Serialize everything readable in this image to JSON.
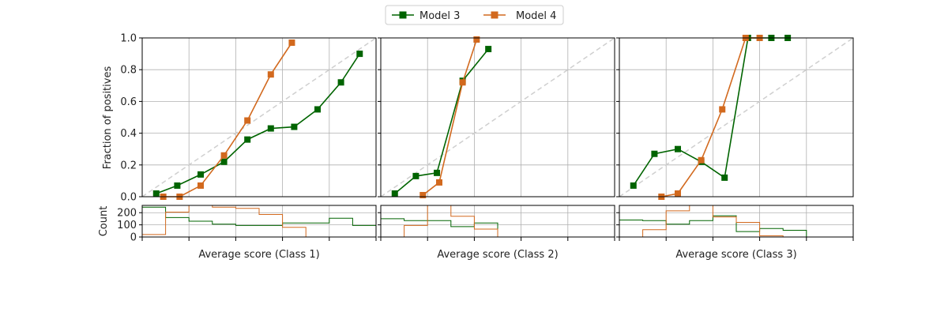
{
  "legend": [
    {
      "label": "Model 3",
      "color": "#006400",
      "marker": "square"
    },
    {
      "label": "Model 4",
      "color": "#d2691e",
      "marker": "square"
    }
  ],
  "y_axis_label": "Fraction of positives",
  "hist_y_axis_label": "Count",
  "chart_data": [
    {
      "type": "line",
      "xlabel": "Average score (Class 1)",
      "ylabel": "Fraction of positives",
      "xlim": [
        0,
        1
      ],
      "ylim": [
        0,
        1
      ],
      "yticks": [
        "0.0",
        "0.2",
        "0.4",
        "0.6",
        "0.8",
        "1.0"
      ],
      "grid": true,
      "reference_line": "diagonal",
      "series": [
        {
          "name": "Model 3",
          "color": "#006400",
          "x": [
            0.06,
            0.15,
            0.25,
            0.35,
            0.45,
            0.55,
            0.65,
            0.75,
            0.85,
            0.93
          ],
          "y": [
            0.02,
            0.07,
            0.14,
            0.22,
            0.36,
            0.43,
            0.44,
            0.55,
            0.72,
            0.9
          ]
        },
        {
          "name": "Model 4",
          "color": "#d2691e",
          "x": [
            0.09,
            0.16,
            0.25,
            0.35,
            0.45,
            0.55,
            0.64
          ],
          "y": [
            0.0,
            0.0,
            0.07,
            0.26,
            0.48,
            0.77,
            0.97
          ]
        }
      ],
      "histogram": {
        "ylabel": "Count",
        "ylim": [
          0,
          260
        ],
        "yticks": [
          "0",
          "100",
          "200"
        ],
        "bins": [
          0,
          0.1,
          0.2,
          0.3,
          0.4,
          0.5,
          0.6,
          0.7,
          0.8,
          0.9,
          1.0
        ],
        "series": [
          {
            "name": "Model 3",
            "color": "#006400",
            "counts": [
              245,
              160,
              130,
              105,
              95,
              95,
              115,
              115,
              155,
              95
            ]
          },
          {
            "name": "Model 4",
            "color": "#d2691e",
            "counts": [
              20,
              205,
              295,
              245,
              235,
              185,
              80,
              0,
              0,
              0
            ]
          }
        ]
      }
    },
    {
      "type": "line",
      "xlabel": "Average score (Class 2)",
      "ylabel": "",
      "xlim": [
        0,
        1
      ],
      "ylim": [
        0,
        1
      ],
      "grid": true,
      "reference_line": "diagonal",
      "series": [
        {
          "name": "Model 3",
          "color": "#006400",
          "x": [
            0.06,
            0.15,
            0.24,
            0.35,
            0.46
          ],
          "y": [
            0.02,
            0.13,
            0.15,
            0.73,
            0.93
          ]
        },
        {
          "name": "Model 4",
          "color": "#d2691e",
          "x": [
            0.18,
            0.25,
            0.35,
            0.41
          ],
          "y": [
            0.01,
            0.09,
            0.72,
            0.99
          ]
        }
      ],
      "histogram": {
        "ylim": [
          0,
          260
        ],
        "bins": [
          0,
          0.1,
          0.2,
          0.3,
          0.4,
          0.5,
          0.6,
          0.7,
          0.8,
          0.9,
          1.0
        ],
        "series": [
          {
            "name": "Model 3",
            "color": "#006400",
            "counts": [
              150,
              135,
              135,
              85,
              115,
              0,
              0,
              0,
              0,
              0
            ]
          },
          {
            "name": "Model 4",
            "color": "#d2691e",
            "counts": [
              0,
              95,
              295,
              170,
              65,
              0,
              0,
              0,
              0,
              0
            ]
          }
        ]
      }
    },
    {
      "type": "line",
      "xlabel": "Average score (Class 3)",
      "ylabel": "",
      "xlim": [
        0,
        1
      ],
      "ylim": [
        0,
        1
      ],
      "grid": true,
      "reference_line": "diagonal",
      "series": [
        {
          "name": "Model 3",
          "color": "#006400",
          "x": [
            0.06,
            0.15,
            0.25,
            0.35,
            0.45,
            0.55,
            0.65,
            0.72
          ],
          "y": [
            0.07,
            0.27,
            0.3,
            0.22,
            0.12,
            1.0,
            1.0,
            1.0
          ]
        },
        {
          "name": "Model 4",
          "color": "#d2691e",
          "x": [
            0.18,
            0.25,
            0.35,
            0.44,
            0.54,
            0.6
          ],
          "y": [
            0.0,
            0.02,
            0.23,
            0.55,
            1.0,
            1.0
          ]
        }
      ],
      "histogram": {
        "ylim": [
          0,
          260
        ],
        "bins": [
          0,
          0.1,
          0.2,
          0.3,
          0.4,
          0.5,
          0.6,
          0.7,
          0.8,
          0.9,
          1.0
        ],
        "series": [
          {
            "name": "Model 3",
            "color": "#006400",
            "counts": [
              140,
              135,
              105,
              135,
              175,
              45,
              70,
              55,
              0,
              0
            ]
          },
          {
            "name": "Model 4",
            "color": "#d2691e",
            "counts": [
              0,
              60,
              215,
              295,
              165,
              120,
              10,
              0,
              0,
              0
            ]
          }
        ]
      }
    }
  ]
}
